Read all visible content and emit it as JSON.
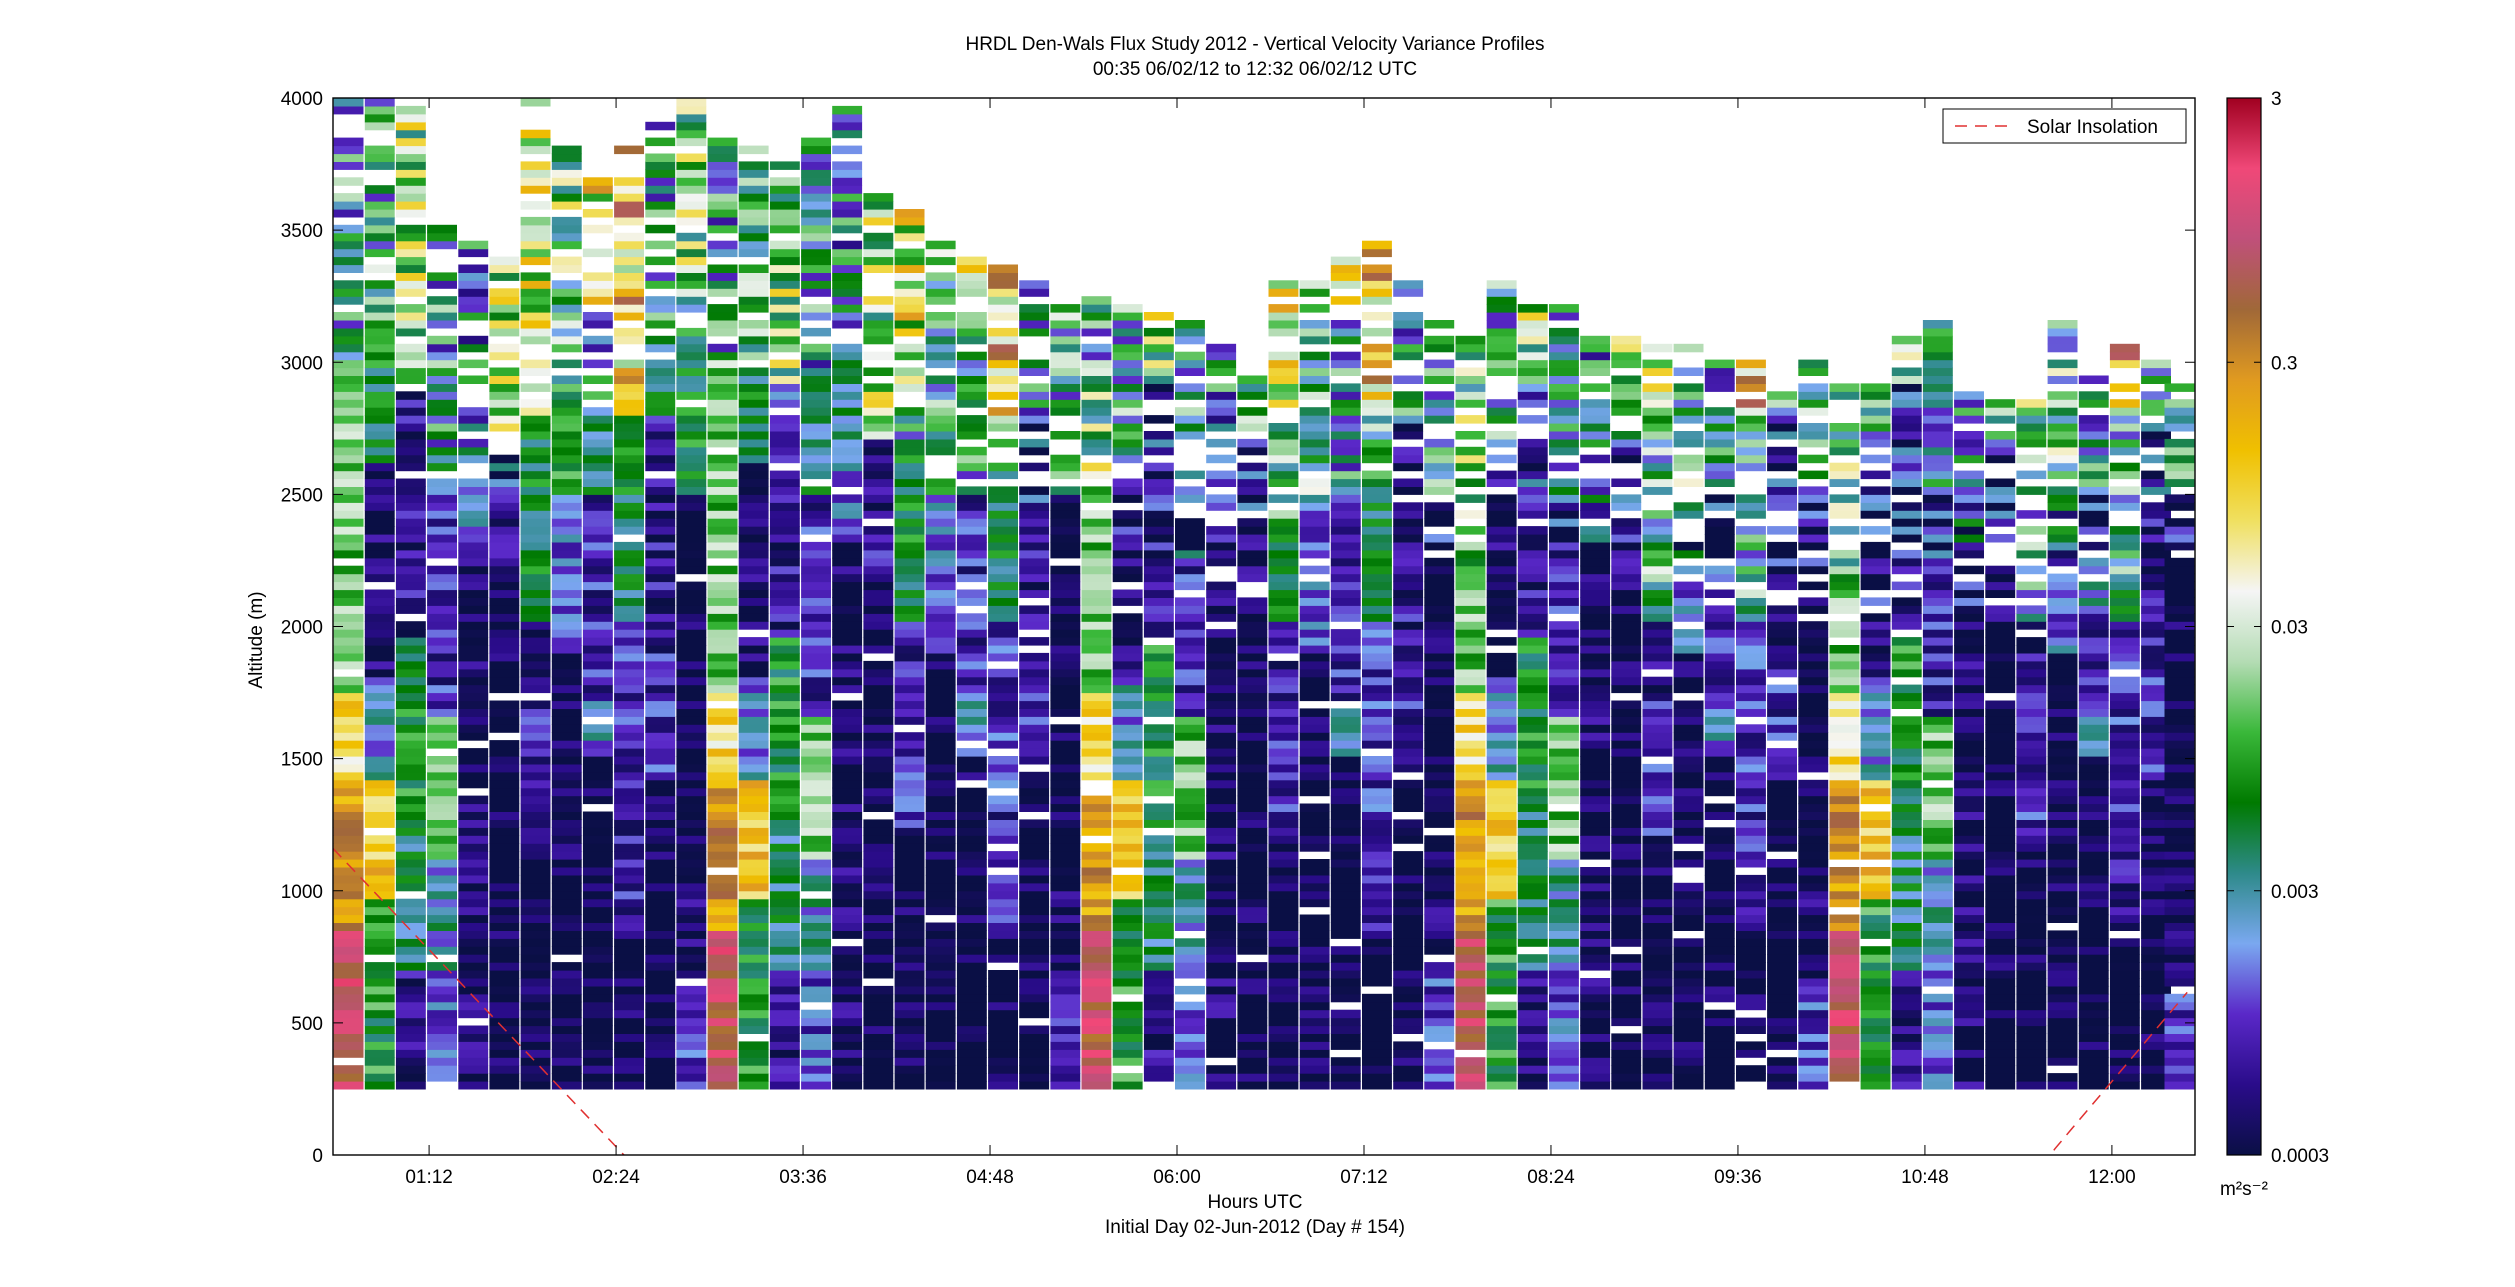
{
  "chart_data": {
    "type": "heatmap",
    "title": "HRDL Den-Wals Flux Study 2012 - Vertical Velocity Variance Profiles",
    "subtitle": "00:35 06/02/12 to 12:32 06/02/12  UTC",
    "xlabel": "Hours UTC",
    "xlabel2": "Initial Day 02-Jun-2012 (Day # 154)",
    "ylabel": "Altitude (m)",
    "xlim": [
      0.5833,
      12.5333
    ],
    "x_ticks": [
      {
        "value": 1.2,
        "label": "01:12"
      },
      {
        "value": 2.4,
        "label": "02:24"
      },
      {
        "value": 3.6,
        "label": "03:36"
      },
      {
        "value": 4.8,
        "label": "04:48"
      },
      {
        "value": 6.0,
        "label": "06:00"
      },
      {
        "value": 7.2,
        "label": "07:12"
      },
      {
        "value": 8.4,
        "label": "08:24"
      },
      {
        "value": 9.6,
        "label": "09:36"
      },
      {
        "value": 10.8,
        "label": "10:48"
      },
      {
        "value": 12.0,
        "label": "12:00"
      }
    ],
    "ylim": [
      0,
      4000
    ],
    "y_ticks": [
      "0",
      "500",
      "1000",
      "1500",
      "2000",
      "2500",
      "3000",
      "3500",
      "4000"
    ],
    "colorbar": {
      "scale": "log",
      "range": [
        0.0003,
        3
      ],
      "ticks": [
        "0.0003",
        "0.003",
        "0.03",
        "0.3",
        "3"
      ],
      "unit": "m²s⁻²",
      "colormap": [
        "#0a0f45",
        "#2a0c8a",
        "#5a28c8",
        "#7aa8f0",
        "#2e8a8a",
        "#007a00",
        "#3ab83a",
        "#b4dcb4",
        "#f5f5f5",
        "#f0e060",
        "#f0c000",
        "#e09a20",
        "#a06838",
        "#c0507a",
        "#f04878",
        "#a00020"
      ]
    },
    "legend": {
      "entries": [
        "Solar Insolation"
      ],
      "position": "top-right"
    },
    "profile_times": [
      0.6833,
      0.8833,
      1.0833,
      1.2833,
      1.4833,
      1.6833,
      1.8833,
      2.0833,
      2.2833,
      2.4833,
      2.6833,
      2.8833,
      3.0833,
      3.2833,
      3.4833,
      3.6833,
      3.8833,
      4.0833,
      4.2833,
      4.4833,
      4.6833,
      4.8833,
      5.0833,
      5.2833,
      5.4833,
      5.6833,
      5.8833,
      6.0833,
      6.2833,
      6.4833,
      6.6833,
      6.8833,
      7.0833,
      7.2833,
      7.4833,
      7.6833,
      7.8833,
      8.0833,
      8.2833,
      8.4833,
      8.6833,
      8.8833,
      9.0833,
      9.2833,
      9.4833,
      9.6833,
      9.8833,
      10.0833,
      10.2833,
      10.4833,
      10.6833,
      10.8833,
      11.0833,
      11.2833,
      11.4833,
      11.6833,
      11.8833,
      12.0833,
      12.2833,
      12.4333
    ],
    "altitude_bottom": 250,
    "altitude_step": 30,
    "column_tops": [
      4000,
      4000,
      3950,
      3550,
      3450,
      3400,
      4000,
      3800,
      3700,
      3800,
      3900,
      4000,
      3850,
      3800,
      3750,
      3850,
      3950,
      3650,
      3600,
      3450,
      3400,
      3400,
      3300,
      3250,
      3250,
      3200,
      3200,
      3150,
      3050,
      3000,
      3300,
      3350,
      3400,
      3450,
      3300,
      3150,
      3100,
      3300,
      3250,
      3200,
      3100,
      3100,
      3050,
      3050,
      3000,
      3000,
      2950,
      3000,
      2900,
      2900,
      3100,
      3150,
      2950,
      2850,
      2850,
      3150,
      2950,
      3050,
      3050,
      3000
    ],
    "profile_segments": [
      [
        [
          250,
          850,
          0.8
        ],
        [
          850,
          1400,
          0.25
        ],
        [
          1400,
          1750,
          0.08
        ],
        [
          1750,
          3000,
          0.015
        ],
        [
          3000,
          4000,
          0.004
        ]
      ],
      [
        [
          250,
          950,
          0.008
        ],
        [
          950,
          1400,
          0.12
        ],
        [
          1400,
          1800,
          0.002
        ],
        [
          1800,
          2600,
          0.0004
        ],
        [
          2600,
          4000,
          0.006
        ]
      ],
      [
        [
          250,
          700,
          0.0005
        ],
        [
          700,
          1300,
          0.004
        ],
        [
          1300,
          1950,
          0.007
        ],
        [
          1950,
          2900,
          0.0006
        ],
        [
          2900,
          3950,
          0.02
        ]
      ],
      [
        [
          250,
          700,
          0.0012
        ],
        [
          700,
          1100,
          0.0025
        ],
        [
          1100,
          1650,
          0.015
        ],
        [
          1650,
          2500,
          0.0008
        ],
        [
          2500,
          3550,
          0.004
        ]
      ],
      [
        [
          250,
          1000,
          0.0004
        ],
        [
          1000,
          2300,
          0.0004
        ],
        [
          2300,
          2600,
          0.0015
        ],
        [
          2600,
          3450,
          0.003
        ]
      ],
      [
        [
          250,
          2100,
          0.0003
        ],
        [
          2100,
          2700,
          0.0006
        ],
        [
          2700,
          3400,
          0.02
        ]
      ],
      [
        [
          250,
          1200,
          0.0003
        ],
        [
          1200,
          1700,
          0.0008
        ],
        [
          1700,
          2000,
          0.0006
        ],
        [
          2000,
          2800,
          0.006
        ],
        [
          2800,
          4000,
          0.04
        ]
      ],
      [
        [
          250,
          1900,
          0.0003
        ],
        [
          1900,
          2500,
          0.0015
        ],
        [
          2500,
          3300,
          0.008
        ],
        [
          3300,
          3800,
          0.015
        ]
      ],
      [
        [
          250,
          1500,
          0.0003
        ],
        [
          1500,
          1700,
          0.002
        ],
        [
          1700,
          2500,
          0.0008
        ],
        [
          2500,
          3200,
          0.004
        ],
        [
          3200,
          3700,
          0.05
        ]
      ],
      [
        [
          250,
          800,
          0.0003
        ],
        [
          800,
          1300,
          0.0007
        ],
        [
          1300,
          2000,
          0.0009
        ],
        [
          2000,
          2800,
          0.005
        ],
        [
          2800,
          3800,
          0.12
        ]
      ],
      [
        [
          250,
          1400,
          0.0003
        ],
        [
          1400,
          1900,
          0.0008
        ],
        [
          1900,
          2800,
          0.0006
        ],
        [
          2800,
          3900,
          0.004
        ]
      ],
      [
        [
          250,
          650,
          0.001
        ],
        [
          650,
          1000,
          0.0004
        ],
        [
          1000,
          2500,
          0.0003
        ],
        [
          2500,
          3200,
          0.006
        ],
        [
          3200,
          4000,
          0.02
        ]
      ]
    ]
  }
}
